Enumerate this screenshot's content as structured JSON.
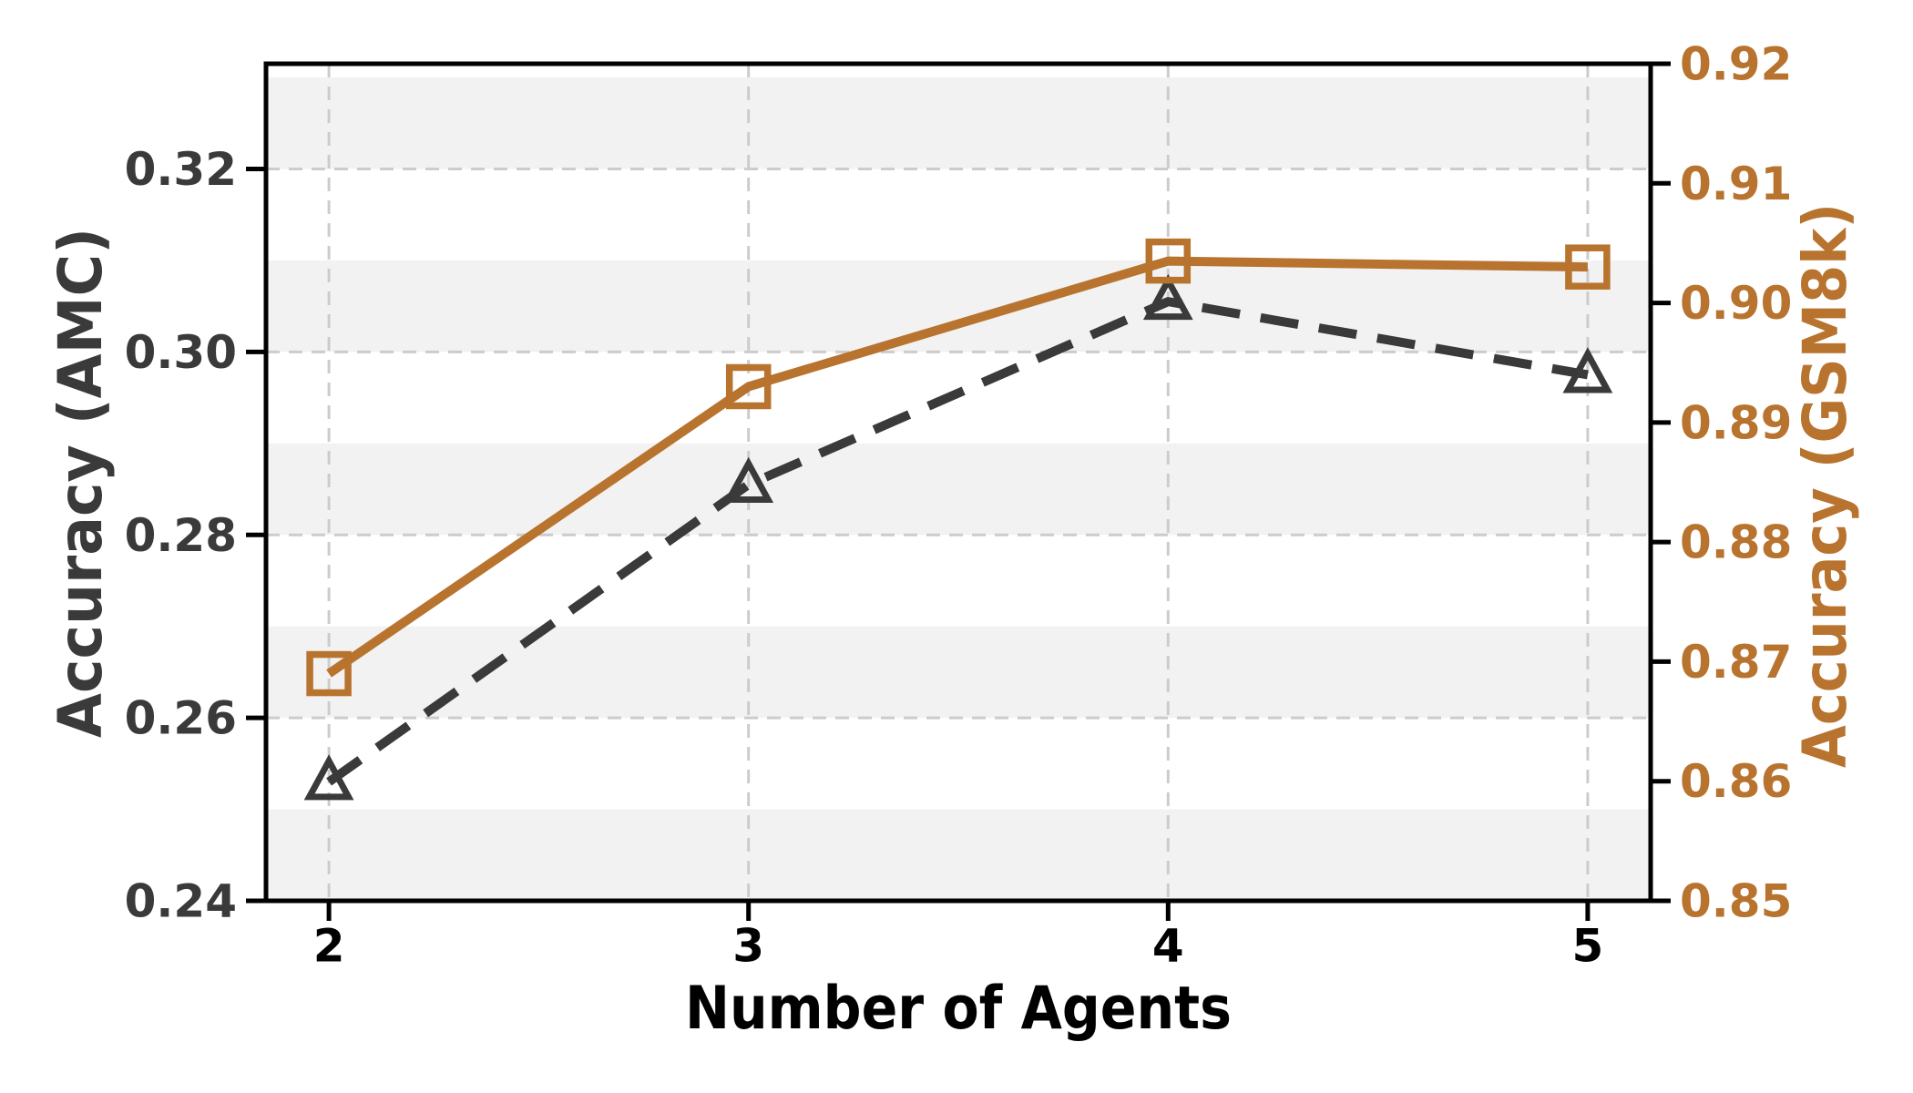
{
  "chart_data": {
    "type": "line",
    "title": "",
    "xlabel": "Number of Agents",
    "ylabel_left": "Accuracy (AMC)",
    "ylabel_right": "Accuracy (GSM8k)",
    "x": [
      2,
      3,
      4,
      5
    ],
    "xtick_labels": [
      "2",
      "3",
      "4",
      "5"
    ],
    "xlim": [
      1.85,
      5.15
    ],
    "left_axis": {
      "label": "Accuracy (AMC)",
      "ticks": [
        0.24,
        0.26,
        0.28,
        0.3,
        0.32
      ],
      "tick_labels": [
        "0.24",
        "0.26",
        "0.28",
        "0.30",
        "0.32"
      ],
      "lim": [
        0.24,
        0.3315
      ]
    },
    "right_axis": {
      "label": "Accuracy (GSM8k)",
      "ticks": [
        0.85,
        0.86,
        0.87,
        0.88,
        0.89,
        0.9,
        0.91,
        0.92
      ],
      "tick_labels": [
        "0.85",
        "0.86",
        "0.87",
        "0.88",
        "0.89",
        "0.90",
        "0.91",
        "0.92"
      ],
      "lim": [
        0.85,
        0.92
      ]
    },
    "series": [
      {
        "name": "AMC",
        "axis": "left",
        "values": [
          0.253,
          0.2855,
          0.3055,
          0.2975
        ],
        "color": "#3a3a3a",
        "line_style": "dashed",
        "marker": "triangle-up",
        "marker_fill": "none"
      },
      {
        "name": "GSM8k",
        "axis": "right",
        "values": [
          0.869,
          0.893,
          0.9035,
          0.903
        ],
        "color": "#b8732e",
        "line_style": "solid",
        "marker": "square",
        "marker_fill": "none"
      }
    ],
    "grid": true,
    "legend": "none",
    "background_stripes": {
      "axis": "left",
      "interval": 0.01,
      "start": 0.24,
      "color": "#f2f2f2"
    },
    "colors": {
      "left_text": "#3a3a3a",
      "right_text": "#b8732e",
      "x_text": "#000000",
      "grid": "#cccccc",
      "spine": "#000000",
      "stripe": "#f2f2f2",
      "background": "#ffffff"
    }
  }
}
